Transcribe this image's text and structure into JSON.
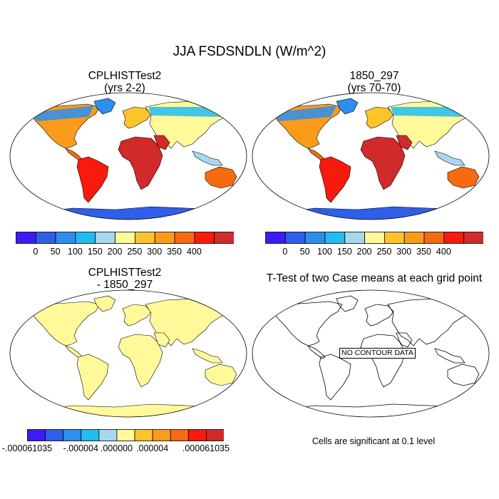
{
  "title": "JJA FSDSNDLN (W/m^2)",
  "panels": {
    "case1": {
      "title_line1": "CPLHISTTest2",
      "title_line2": "(yrs 2-2)"
    },
    "case2": {
      "title_line1": "1850_297",
      "title_line2": "(yrs 70-70)"
    },
    "diff": {
      "title_line1": "CPLHISTTest2",
      "title_line2": "- 1850_297"
    },
    "ttest": {
      "title": "T-Test of two Case means at each grid point",
      "no_data_label": "NO CONTOUR DATA",
      "footnote": "Cells are significant at 0.1 level"
    }
  },
  "chart_data": [
    {
      "type": "heatmap",
      "title": "CPLHISTTest2 (yrs 2-2)",
      "description_values": "Map of JJA net downward shortwave at surface; highest (>350) over Sahara, Arabia, southwestern US, Mexico, Brazil; lowest (<50) over Antarctica; Arctic 0-150",
      "colorbar": {
        "colors": [
          "#3b1cf5",
          "#2f5ee8",
          "#2d8ef0",
          "#22bdf0",
          "#a8d8ee",
          "#fff99a",
          "#fcc42c",
          "#fa9c1a",
          "#f86a10",
          "#f81a0c",
          "#d12a2a"
        ],
        "labels": [
          "0",
          "50",
          "100",
          "150",
          "200",
          "250",
          "300",
          "350",
          "400"
        ],
        "levels": [
          0,
          50,
          100,
          150,
          200,
          250,
          300,
          350,
          400
        ]
      }
    },
    {
      "type": "heatmap",
      "title": "1850_297 (yrs 70-70)",
      "colorbar": {
        "colors": [
          "#3b1cf5",
          "#2f5ee8",
          "#2d8ef0",
          "#22bdf0",
          "#a8d8ee",
          "#fff99a",
          "#fcc42c",
          "#fa9c1a",
          "#f86a10",
          "#f81a0c",
          "#d12a2a"
        ],
        "labels": [
          "0",
          "50",
          "100",
          "150",
          "200",
          "250",
          "300",
          "350",
          "400"
        ],
        "levels": [
          0,
          50,
          100,
          150,
          200,
          250,
          300,
          350,
          400
        ]
      }
    },
    {
      "type": "heatmap",
      "title": "CPLHISTTest2 - 1850_297",
      "colorbar": {
        "colors": [
          "#3b1cf5",
          "#2f5ee8",
          "#2d8ef0",
          "#22bdf0",
          "#a8d8ee",
          "#fff99a",
          "#fcc42c",
          "#fa9c1a",
          "#f86a10",
          "#f81a0c",
          "#d12a2a"
        ],
        "labels": [
          "-.000061035",
          "-.000004",
          ".000000",
          ".000004",
          ".000061035"
        ],
        "levels": [
          -6.1035e-05,
          -4e-06,
          0,
          4e-06,
          6.1035e-05
        ]
      }
    },
    {
      "type": "heatmap",
      "title": "T-Test of two Case means at each grid point",
      "note": "NO CONTOUR DATA"
    }
  ]
}
